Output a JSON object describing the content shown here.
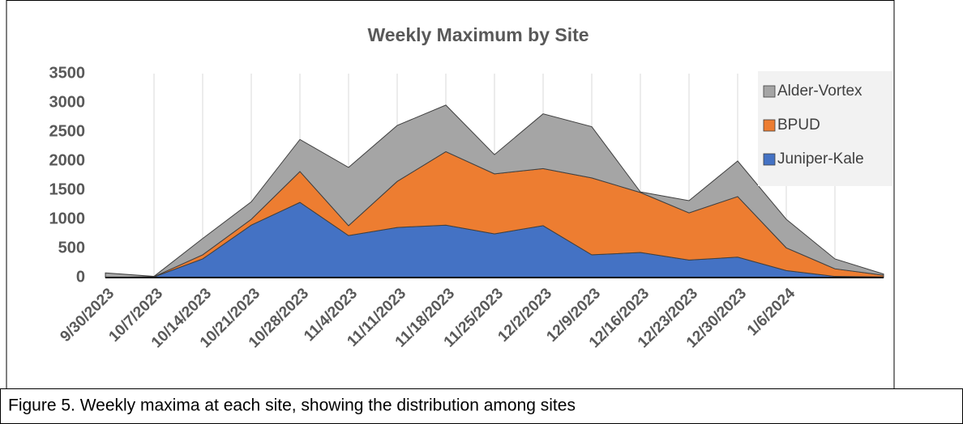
{
  "chart_data": {
    "type": "stacked-area",
    "title": "Weekly Maximum by Site",
    "categories": [
      "9/30/2023",
      "10/7/2023",
      "10/14/2023",
      "10/21/2023",
      "10/28/2023",
      "11/4/2023",
      "11/11/2023",
      "11/18/2023",
      "11/25/2023",
      "12/2/2023",
      "12/9/2023",
      "12/16/2023",
      "12/23/2023",
      "12/30/2023",
      "1/6/2024",
      null,
      null
    ],
    "series": [
      {
        "name": "Juniper-Kale",
        "color": "#4472c4",
        "values": [
          0,
          10,
          320,
          900,
          1290,
          720,
          860,
          900,
          750,
          890,
          390,
          430,
          300,
          350,
          120,
          20,
          10
        ]
      },
      {
        "name": "BPUD",
        "color": "#ed7d31",
        "values": [
          0,
          5,
          70,
          100,
          530,
          170,
          790,
          1260,
          1030,
          980,
          1320,
          1030,
          810,
          1040,
          390,
          130,
          30
        ]
      },
      {
        "name": "Alder-Vortex",
        "color": "#a5a5a5",
        "values": [
          80,
          5,
          280,
          300,
          550,
          1000,
          960,
          800,
          330,
          940,
          880,
          10,
          210,
          610,
          490,
          170,
          20
        ]
      }
    ],
    "ylim": [
      0,
      3500
    ],
    "yticks": [
      0,
      500,
      1000,
      1500,
      2000,
      2500,
      3000,
      3500
    ],
    "grid": "x",
    "legend": "right"
  },
  "caption": "Figure 5. Weekly maxima at each site, showing the distribution among sites"
}
